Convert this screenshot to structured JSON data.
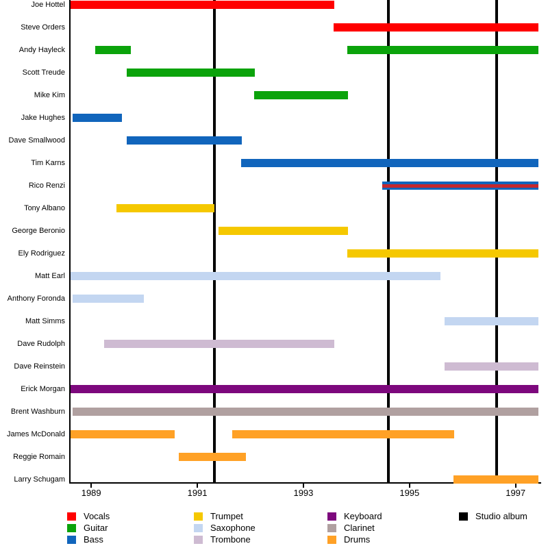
{
  "chart_data": {
    "type": "bar",
    "subtype": "band-member-timeline-gantt",
    "orientation": "horizontal",
    "title": "",
    "x_axis": {
      "ticks": [
        1989,
        1991,
        1993,
        1995,
        1997
      ],
      "min": 1988.61,
      "max": 1997.43,
      "grid": false
    },
    "instrument_colors": {
      "Vocals": "#FF0000",
      "Guitar": "#0BA30B",
      "Bass": "#1165BC",
      "Trumpet": "#F5C800",
      "Saxophone": "#C3D6F1",
      "Trombone": "#CEBBD2",
      "Keyboard": "#7D087D",
      "Clarinet": "#B0A0A0",
      "Drums": "#FFA126"
    },
    "album_markers": {
      "label": "Studio album",
      "color": "#000000",
      "years": [
        1991.32,
        1994.6,
        1996.64
      ]
    },
    "members": [
      {
        "name": "Joe Hottel",
        "bars": [
          {
            "instrument": "Vocals",
            "start": 1988.61,
            "end": 1993.58
          }
        ]
      },
      {
        "name": "Steve Orders",
        "bars": [
          {
            "instrument": "Vocals",
            "start": 1993.57,
            "end": 1997.43
          }
        ]
      },
      {
        "name": "Andy Hayleck",
        "bars": [
          {
            "instrument": "Guitar",
            "start": 1989.07,
            "end": 1989.75
          },
          {
            "instrument": "Guitar",
            "start": 1993.83,
            "end": 1997.43
          }
        ]
      },
      {
        "name": "Scott Treude",
        "bars": [
          {
            "instrument": "Guitar",
            "start": 1989.67,
            "end": 1992.08
          }
        ]
      },
      {
        "name": "Mike Kim",
        "bars": [
          {
            "instrument": "Guitar",
            "start": 1992.07,
            "end": 1993.84
          }
        ]
      },
      {
        "name": "Jake Hughes",
        "bars": [
          {
            "instrument": "Bass",
            "start": 1988.65,
            "end": 1989.58
          }
        ]
      },
      {
        "name": "Dave Smallwood",
        "bars": [
          {
            "instrument": "Bass",
            "start": 1989.67,
            "end": 1991.84
          }
        ]
      },
      {
        "name": "Tim Karns",
        "bars": [
          {
            "instrument": "Bass",
            "start": 1991.83,
            "end": 1997.43
          }
        ]
      },
      {
        "name": "Rico Renzi",
        "bars": [
          {
            "instrument": "Bass",
            "start": 1994.49,
            "end": 1997.43,
            "overlay_instrument": "Vocals",
            "overlay_color": "#C4272E"
          }
        ]
      },
      {
        "name": "Tony Albano",
        "bars": [
          {
            "instrument": "Trumpet",
            "start": 1989.48,
            "end": 1991.32
          }
        ]
      },
      {
        "name": "George Beronio",
        "bars": [
          {
            "instrument": "Trumpet",
            "start": 1991.4,
            "end": 1993.84
          }
        ]
      },
      {
        "name": "Ely Rodriguez",
        "bars": [
          {
            "instrument": "Trumpet",
            "start": 1993.83,
            "end": 1997.43
          }
        ]
      },
      {
        "name": "Matt Earl",
        "bars": [
          {
            "instrument": "Saxophone",
            "start": 1988.61,
            "end": 1995.58
          }
        ]
      },
      {
        "name": "Anthony Foronda",
        "bars": [
          {
            "instrument": "Saxophone",
            "start": 1988.65,
            "end": 1989.99
          }
        ]
      },
      {
        "name": "Matt Simms",
        "bars": [
          {
            "instrument": "Saxophone",
            "start": 1995.66,
            "end": 1997.43
          }
        ]
      },
      {
        "name": "Dave Rudolph",
        "bars": [
          {
            "instrument": "Trombone",
            "start": 1989.24,
            "end": 1993.58
          }
        ]
      },
      {
        "name": "Dave Reinstein",
        "bars": [
          {
            "instrument": "Trombone",
            "start": 1995.66,
            "end": 1997.43
          }
        ]
      },
      {
        "name": "Erick Morgan",
        "bars": [
          {
            "instrument": "Keyboard",
            "start": 1988.61,
            "end": 1997.43
          }
        ]
      },
      {
        "name": "Brent Washburn",
        "bars": [
          {
            "instrument": "Clarinet",
            "start": 1988.65,
            "end": 1997.43
          }
        ]
      },
      {
        "name": "James McDonald",
        "bars": [
          {
            "instrument": "Drums",
            "start": 1988.61,
            "end": 1990.57
          },
          {
            "instrument": "Drums",
            "start": 1991.66,
            "end": 1995.84
          }
        ]
      },
      {
        "name": "Reggie Romain",
        "bars": [
          {
            "instrument": "Drums",
            "start": 1990.65,
            "end": 1991.92
          }
        ]
      },
      {
        "name": "Larry Schugam",
        "bars": [
          {
            "instrument": "Drums",
            "start": 1995.83,
            "end": 1997.43
          }
        ]
      }
    ],
    "legend": {
      "position": "bottom",
      "columns": [
        [
          {
            "label": "Vocals",
            "color": "#FF0000"
          },
          {
            "label": "Guitar",
            "color": "#0BA30B"
          },
          {
            "label": "Bass",
            "color": "#1165BC"
          }
        ],
        [
          {
            "label": "Trumpet",
            "color": "#F5C800"
          },
          {
            "label": "Saxophone",
            "color": "#C3D6F1"
          },
          {
            "label": "Trombone",
            "color": "#CEBBD2"
          }
        ],
        [
          {
            "label": "Keyboard",
            "color": "#7D087D"
          },
          {
            "label": "Clarinet",
            "color": "#B0A0A0"
          },
          {
            "label": "Drums",
            "color": "#FFA126"
          }
        ],
        [
          {
            "label": "Studio album",
            "color": "#000000"
          }
        ]
      ]
    }
  }
}
